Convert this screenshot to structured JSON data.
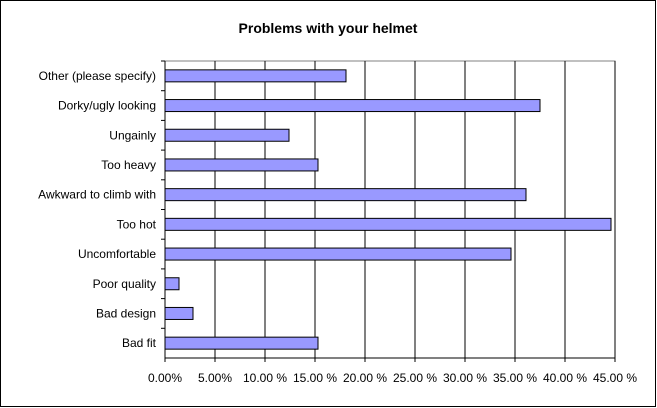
{
  "chart_data": {
    "type": "barh",
    "title": "Problems with your helmet",
    "categories": [
      "Other (please specify)",
      "Dorky/ugly looking",
      "Ungainly",
      "Too heavy",
      "Awkward to climb with",
      "Too hot",
      "Uncomfortable",
      "Poor quality",
      "Bad design",
      "Bad fit"
    ],
    "values": [
      18.1,
      37.5,
      12.4,
      15.3,
      36.1,
      44.6,
      34.6,
      1.4,
      2.8,
      15.3
    ],
    "color": "#9999ff",
    "xlim": [
      0,
      45
    ],
    "xticks": [
      {
        "value": 0,
        "label": "0.00%"
      },
      {
        "value": 5,
        "label": "5.00%"
      },
      {
        "value": 10,
        "label": "10.00 %"
      },
      {
        "value": 15,
        "label": "15.00 %"
      },
      {
        "value": 20,
        "label": "20.00 %"
      },
      {
        "value": 25,
        "label": "25.00 %"
      },
      {
        "value": 30,
        "label": "30.00 %"
      },
      {
        "value": 35,
        "label": "35.00 %"
      },
      {
        "value": 40,
        "label": "40.00 %"
      },
      {
        "value": 45,
        "label": "45.00 %"
      }
    ],
    "grid": true
  }
}
